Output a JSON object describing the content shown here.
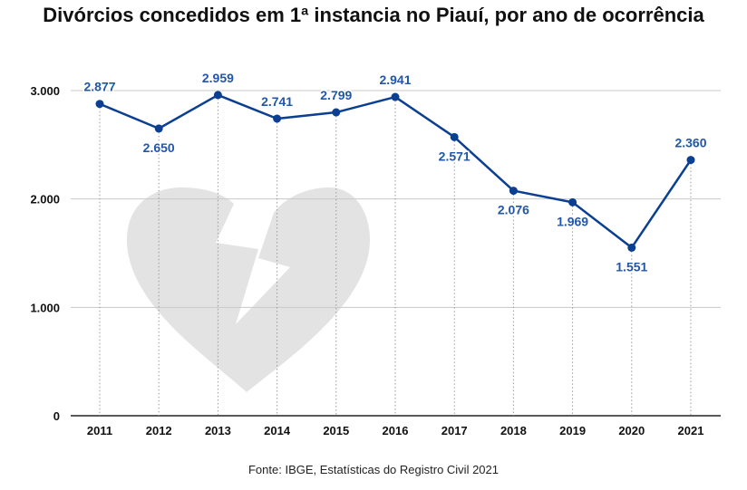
{
  "chart_data": {
    "type": "line",
    "title": "Divórcios concedidos em 1ª instancia no Piauí, por ano de ocorrência",
    "source": "Fonte: IBGE, Estatísticas do Registro Civil 2021",
    "categories": [
      "2011",
      "2012",
      "2013",
      "2014",
      "2015",
      "2016",
      "2017",
      "2018",
      "2019",
      "2020",
      "2021"
    ],
    "values": [
      2877,
      2650,
      2959,
      2741,
      2799,
      2941,
      2571,
      2076,
      1969,
      1551,
      2360
    ],
    "value_labels": [
      "2.877",
      "2.650",
      "2.959",
      "2.741",
      "2.799",
      "2.941",
      "2.571",
      "2.076",
      "1.969",
      "1.551",
      "2.360"
    ],
    "label_positions": [
      "above",
      "below",
      "above",
      "above",
      "above",
      "above",
      "below",
      "below",
      "below",
      "below",
      "above"
    ],
    "yticks": [
      0,
      1000,
      2000,
      3000
    ],
    "ytick_labels": [
      "0",
      "1.000",
      "2.000",
      "3.000"
    ],
    "ylim": [
      0,
      3000
    ],
    "xlabel": "",
    "ylabel": "",
    "grid": true,
    "legend": "none",
    "colors": {
      "line": "#0b3f91",
      "label": "#2257a8",
      "grid": "#c8c8c8",
      "watermark": "#e3e3e3"
    },
    "watermark_icon": "broken-heart-icon"
  }
}
